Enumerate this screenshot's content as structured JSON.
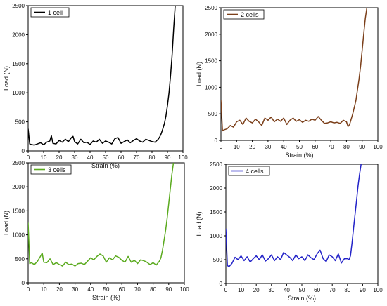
{
  "chart_data": [
    {
      "type": "line",
      "xlabel": "Strain (%)",
      "ylabel": "Load (N)",
      "xlim": [
        0,
        100
      ],
      "ylim": [
        0,
        2500
      ],
      "xticks": [
        "0",
        "10",
        "20",
        "30",
        "40",
        "50",
        "60",
        "70",
        "80",
        "90",
        "100"
      ],
      "yticks": [
        "0",
        "500",
        "1000",
        "1500",
        "2000",
        "2500"
      ],
      "legend_position": "top-left",
      "series": [
        {
          "name": "1 cell",
          "color": "#000000",
          "x": [
            0,
            1,
            2,
            4,
            6,
            8,
            10,
            12,
            14,
            15,
            16,
            18,
            20,
            22,
            24,
            26,
            28,
            29,
            30,
            32,
            34,
            36,
            38,
            40,
            42,
            44,
            46,
            48,
            50,
            52,
            54,
            56,
            58,
            60,
            62,
            64,
            66,
            68,
            70,
            72,
            74,
            76,
            78,
            80,
            82,
            84,
            85,
            86,
            87,
            88,
            89,
            90,
            91,
            92,
            93,
            94,
            95
          ],
          "y": [
            380,
            120,
            110,
            100,
            120,
            140,
            105,
            150,
            170,
            260,
            130,
            120,
            180,
            150,
            200,
            160,
            230,
            250,
            160,
            120,
            200,
            140,
            150,
            110,
            170,
            150,
            200,
            130,
            170,
            150,
            120,
            210,
            230,
            130,
            160,
            190,
            140,
            180,
            210,
            170,
            150,
            200,
            180,
            160,
            150,
            200,
            240,
            300,
            380,
            470,
            600,
            780,
            1000,
            1300,
            1650,
            2100,
            2500
          ]
        },
        {
          "name": "2 cells",
          "color": "#7b3f1a",
          "x": [
            0,
            1,
            2,
            4,
            6,
            8,
            10,
            12,
            14,
            16,
            18,
            20,
            22,
            24,
            26,
            28,
            30,
            32,
            34,
            36,
            38,
            40,
            42,
            44,
            46,
            48,
            50,
            52,
            54,
            56,
            58,
            60,
            62,
            64,
            66,
            68,
            70,
            72,
            74,
            76,
            78,
            80,
            81,
            82,
            84,
            86,
            87,
            88,
            89,
            90,
            91,
            92,
            93,
            94
          ],
          "y": [
            760,
            180,
            200,
            220,
            280,
            250,
            350,
            380,
            300,
            420,
            360,
            330,
            400,
            350,
            280,
            420,
            380,
            440,
            350,
            400,
            360,
            420,
            300,
            380,
            420,
            360,
            390,
            340,
            380,
            360,
            400,
            380,
            450,
            380,
            320,
            330,
            350,
            330,
            340,
            320,
            380,
            350,
            260,
            300,
            500,
            750,
            950,
            1150,
            1400,
            1700,
            2000,
            2300,
            2500,
            2500
          ]
        },
        {
          "name": "3 cells",
          "color": "#5aaa1e",
          "x": [
            0,
            1,
            2,
            4,
            6,
            8,
            9,
            10,
            12,
            14,
            16,
            18,
            20,
            22,
            24,
            26,
            28,
            30,
            32,
            34,
            36,
            38,
            40,
            42,
            44,
            46,
            48,
            50,
            52,
            54,
            56,
            58,
            60,
            62,
            64,
            66,
            68,
            70,
            72,
            74,
            76,
            78,
            80,
            82,
            84,
            85,
            86,
            87,
            88,
            89,
            90,
            91,
            92,
            93
          ],
          "y": [
            1250,
            400,
            420,
            380,
            450,
            560,
            620,
            430,
            420,
            500,
            380,
            420,
            380,
            350,
            430,
            380,
            390,
            350,
            400,
            410,
            380,
            450,
            520,
            480,
            550,
            600,
            560,
            430,
            520,
            480,
            560,
            530,
            470,
            430,
            550,
            430,
            470,
            400,
            480,
            460,
            430,
            380,
            420,
            370,
            450,
            520,
            680,
            880,
            1100,
            1350,
            1650,
            1950,
            2250,
            2500
          ]
        },
        {
          "name": "4 cells",
          "color": "#2323c8",
          "x": [
            0,
            1,
            2,
            4,
            6,
            8,
            10,
            12,
            14,
            16,
            18,
            20,
            22,
            24,
            26,
            28,
            30,
            32,
            34,
            36,
            38,
            40,
            42,
            44,
            46,
            48,
            50,
            52,
            54,
            56,
            58,
            60,
            62,
            64,
            66,
            68,
            70,
            72,
            74,
            76,
            78,
            80,
            81,
            82,
            83,
            84,
            85,
            86,
            87,
            88,
            89
          ],
          "y": [
            1150,
            380,
            350,
            420,
            550,
            500,
            580,
            480,
            560,
            450,
            520,
            580,
            500,
            600,
            470,
            520,
            600,
            480,
            560,
            500,
            650,
            600,
            550,
            480,
            600,
            520,
            560,
            480,
            600,
            540,
            500,
            620,
            700,
            520,
            460,
            600,
            560,
            480,
            620,
            430,
            520,
            520,
            500,
            580,
            850,
            1150,
            1450,
            1750,
            2050,
            2300,
            2500
          ]
        }
      ]
    }
  ]
}
